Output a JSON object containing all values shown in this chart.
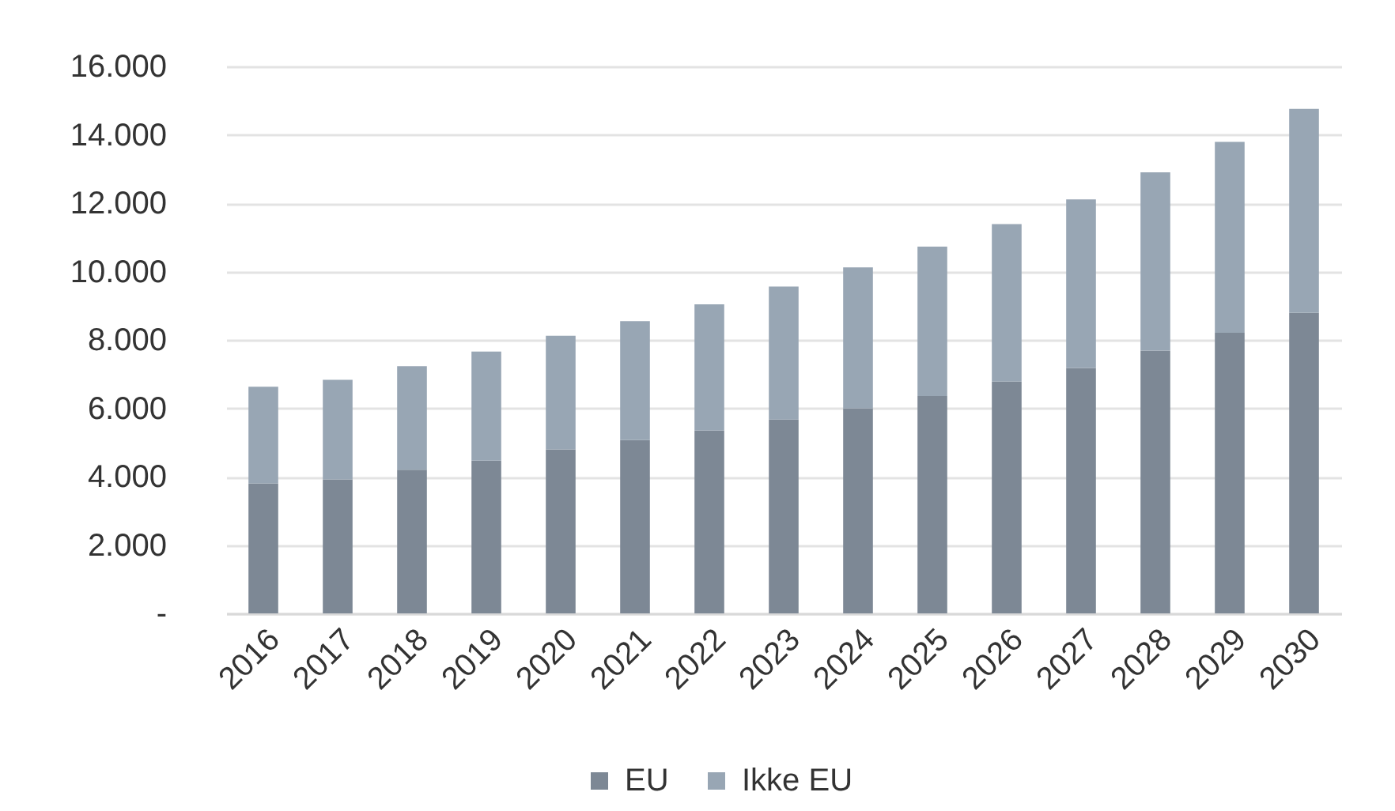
{
  "chart_data": {
    "type": "bar",
    "stacked": true,
    "categories": [
      "2016",
      "2017",
      "2018",
      "2019",
      "2020",
      "2021",
      "2022",
      "2023",
      "2024",
      "2025",
      "2026",
      "2027",
      "2028",
      "2029",
      "2030"
    ],
    "series": [
      {
        "name": "EU",
        "color": "#7d8895",
        "values": [
          3800,
          3920,
          4200,
          4470,
          4800,
          5070,
          5350,
          5670,
          6000,
          6360,
          6780,
          7180,
          7690,
          8210,
          8790
        ]
      },
      {
        "name": "Ikke EU",
        "color": "#98a6b4",
        "values": [
          2830,
          2910,
          3030,
          3190,
          3320,
          3480,
          3690,
          3890,
          4120,
          4370,
          4610,
          4930,
          5210,
          5580,
          5970
        ]
      }
    ],
    "ylim": [
      0,
      16000
    ],
    "yticks": [
      {
        "value": 0,
        "label": "-"
      },
      {
        "value": 2000,
        "label": "2.000"
      },
      {
        "value": 4000,
        "label": "4.000"
      },
      {
        "value": 6000,
        "label": "6.000"
      },
      {
        "value": 8000,
        "label": "8.000"
      },
      {
        "value": 10000,
        "label": "10.000"
      },
      {
        "value": 12000,
        "label": "12.000"
      },
      {
        "value": 14000,
        "label": "14.000"
      },
      {
        "value": 16000,
        "label": "16.000"
      }
    ],
    "grid": "y",
    "legend": "bottom"
  }
}
